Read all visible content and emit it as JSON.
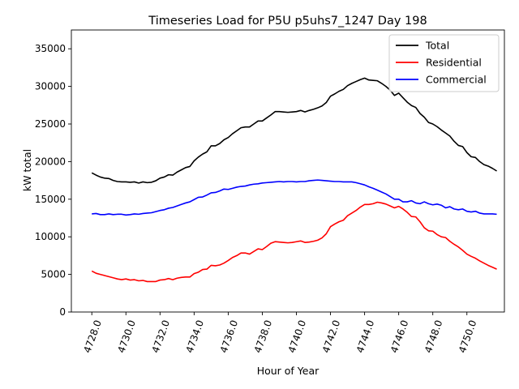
{
  "chart_data": {
    "type": "line",
    "title": "Timeseries Load for P5U p5uhs7_1247  Day 198",
    "xlabel": "Hour of Year",
    "ylabel": "kW total",
    "xlim": [
      4726.8,
      4752.2
    ],
    "ylim": [
      0,
      37500
    ],
    "x_ticks": [
      4728,
      4730,
      4732,
      4734,
      4736,
      4738,
      4740,
      4742,
      4744,
      4746,
      4748,
      4750
    ],
    "x_tick_labels": [
      "4728.0",
      "4730.0",
      "4732.0",
      "4734.0",
      "4736.0",
      "4738.0",
      "4740.0",
      "4742.0",
      "4744.0",
      "4746.0",
      "4748.0",
      "4750.0"
    ],
    "y_ticks": [
      0,
      5000,
      10000,
      15000,
      20000,
      25000,
      30000,
      35000
    ],
    "y_tick_labels": [
      "0",
      "5000",
      "10000",
      "15000",
      "20000",
      "25000",
      "30000",
      "35000"
    ],
    "grid": false,
    "legend_position": "top-right",
    "x": [
      4728.0,
      4728.25,
      4728.5,
      4728.75,
      4729.0,
      4729.25,
      4729.5,
      4729.75,
      4730.0,
      4730.25,
      4730.5,
      4730.75,
      4731.0,
      4731.25,
      4731.5,
      4731.75,
      4732.0,
      4732.25,
      4732.5,
      4732.75,
      4733.0,
      4733.25,
      4733.5,
      4733.75,
      4734.0,
      4734.25,
      4734.5,
      4734.75,
      4735.0,
      4735.25,
      4735.5,
      4735.75,
      4736.0,
      4736.25,
      4736.5,
      4736.75,
      4737.0,
      4737.25,
      4737.5,
      4737.75,
      4738.0,
      4738.25,
      4738.5,
      4738.75,
      4739.0,
      4739.25,
      4739.5,
      4739.75,
      4740.0,
      4740.25,
      4740.5,
      4740.75,
      4741.0,
      4741.25,
      4741.5,
      4741.75,
      4742.0,
      4742.25,
      4742.5,
      4742.75,
      4743.0,
      4743.25,
      4743.5,
      4743.75,
      4744.0,
      4744.25,
      4744.5,
      4744.75,
      4745.0,
      4745.25,
      4745.5,
      4745.75,
      4746.0,
      4746.25,
      4746.5,
      4746.75,
      4747.0,
      4747.25,
      4747.5,
      4747.75,
      4748.0,
      4748.25,
      4748.5,
      4748.75,
      4749.0,
      4749.25,
      4749.5,
      4749.75,
      4750.0,
      4750.25,
      4750.5,
      4750.75,
      4751.0,
      4751.25,
      4751.5,
      4751.75
    ],
    "series": [
      {
        "name": "Total",
        "color": "#000000",
        "values": [
          18500,
          18200,
          17950,
          17800,
          17750,
          17500,
          17350,
          17300,
          17300,
          17250,
          17300,
          17150,
          17300,
          17200,
          17250,
          17450,
          17800,
          17950,
          18250,
          18200,
          18600,
          18900,
          19200,
          19350,
          20100,
          20600,
          21000,
          21300,
          22100,
          22100,
          22400,
          22900,
          23200,
          23700,
          24100,
          24500,
          24600,
          24600,
          25000,
          25400,
          25400,
          25800,
          26200,
          26650,
          26650,
          26600,
          26550,
          26600,
          26650,
          26800,
          26600,
          26800,
          26950,
          27150,
          27400,
          27850,
          28700,
          29000,
          29350,
          29600,
          30100,
          30400,
          30650,
          30900,
          31100,
          30850,
          30800,
          30750,
          30400,
          30000,
          29500,
          28800,
          29100,
          28500,
          27900,
          27450,
          27200,
          26400,
          25900,
          25200,
          25000,
          24650,
          24200,
          23800,
          23400,
          22700,
          22150,
          22000,
          21200,
          20650,
          20550,
          20000,
          19600,
          19400,
          19100,
          18750
        ]
      },
      {
        "name": "Residential",
        "color": "#ff0000",
        "values": [
          5450,
          5150,
          5000,
          4850,
          4700,
          4550,
          4400,
          4300,
          4400,
          4250,
          4300,
          4150,
          4200,
          4050,
          4050,
          4050,
          4250,
          4300,
          4450,
          4300,
          4500,
          4600,
          4650,
          4650,
          5100,
          5300,
          5650,
          5700,
          6200,
          6150,
          6250,
          6500,
          6850,
          7250,
          7500,
          7850,
          7850,
          7700,
          8050,
          8400,
          8300,
          8700,
          9150,
          9350,
          9300,
          9250,
          9200,
          9250,
          9350,
          9450,
          9250,
          9300,
          9400,
          9550,
          9850,
          10400,
          11350,
          11700,
          12000,
          12200,
          12800,
          13150,
          13500,
          13950,
          14300,
          14300,
          14400,
          14600,
          14500,
          14350,
          14100,
          13850,
          14050,
          13700,
          13250,
          12700,
          12650,
          12000,
          11200,
          10800,
          10750,
          10300,
          10000,
          9900,
          9400,
          9000,
          8650,
          8200,
          7700,
          7400,
          7150,
          6800,
          6500,
          6200,
          5950,
          5700
        ]
      },
      {
        "name": "Commercial",
        "color": "#0000ff",
        "values": [
          13050,
          13100,
          12950,
          12950,
          13050,
          12950,
          13000,
          13000,
          12900,
          12950,
          13050,
          13000,
          13100,
          13150,
          13200,
          13350,
          13500,
          13600,
          13800,
          13900,
          14100,
          14300,
          14500,
          14650,
          14950,
          15250,
          15300,
          15550,
          15850,
          15900,
          16100,
          16350,
          16300,
          16450,
          16600,
          16700,
          16750,
          16900,
          17000,
          17050,
          17150,
          17200,
          17250,
          17300,
          17350,
          17300,
          17350,
          17350,
          17300,
          17350,
          17350,
          17450,
          17500,
          17550,
          17500,
          17450,
          17400,
          17350,
          17350,
          17300,
          17300,
          17300,
          17200,
          17050,
          16900,
          16650,
          16450,
          16200,
          15950,
          15700,
          15350,
          15000,
          15000,
          14650,
          14650,
          14800,
          14500,
          14400,
          14650,
          14400,
          14250,
          14350,
          14200,
          13850,
          14000,
          13700,
          13600,
          13700,
          13400,
          13300,
          13400,
          13150,
          13050,
          13050,
          13050,
          13000
        ]
      }
    ]
  }
}
